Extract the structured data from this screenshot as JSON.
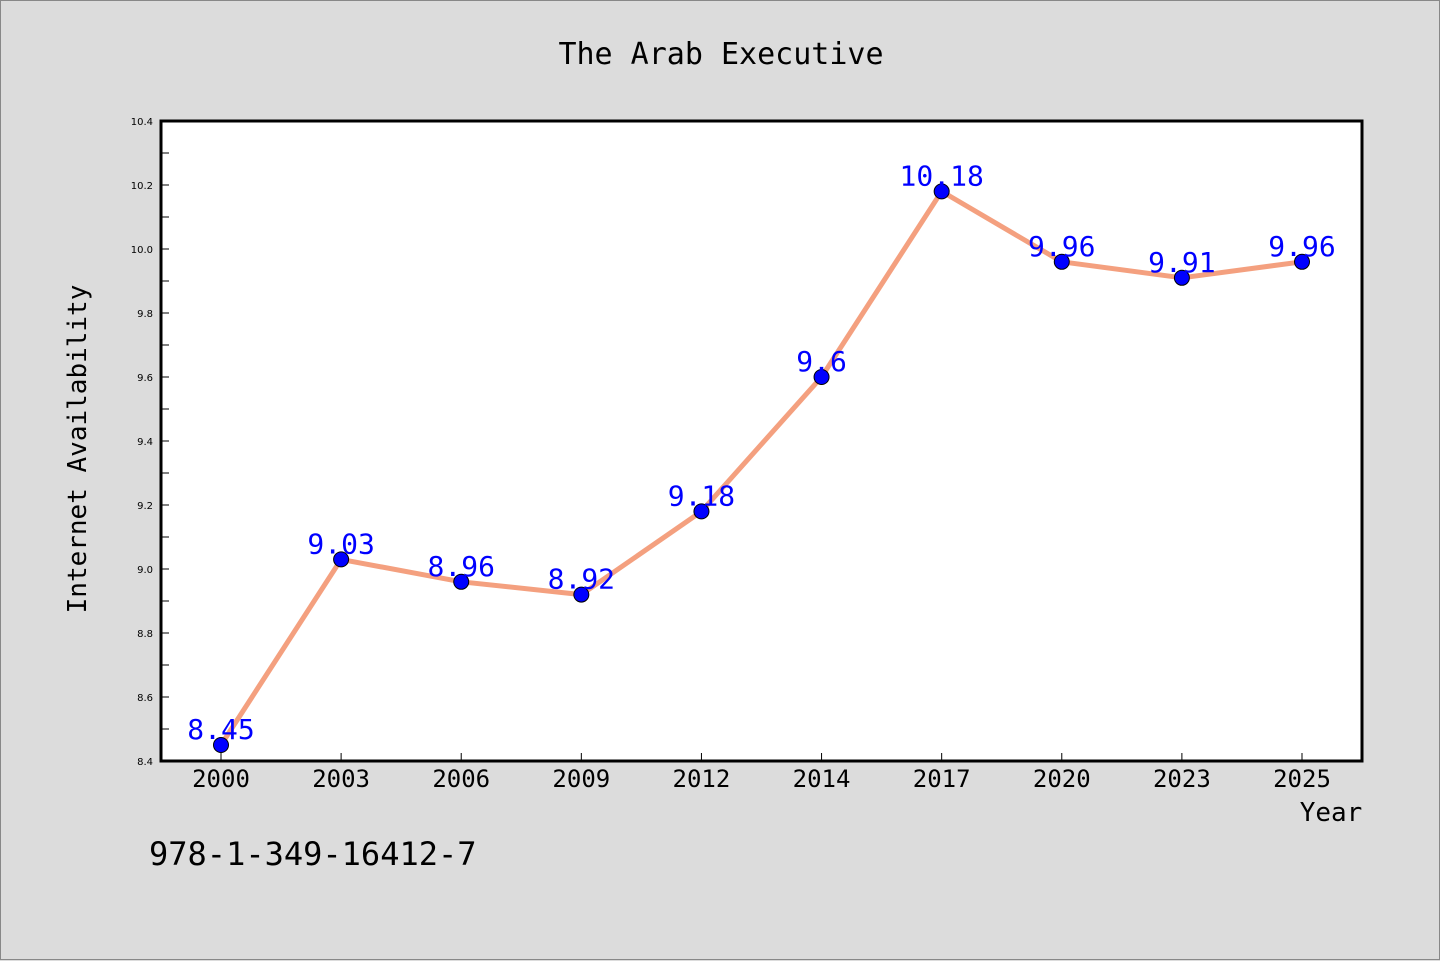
{
  "chart_data": {
    "type": "line",
    "title": "The Arab Executive",
    "xlabel": "Year",
    "ylabel": "Internet Availability",
    "categories": [
      "2000",
      "2003",
      "2006",
      "2009",
      "2012",
      "2014",
      "2017",
      "2020",
      "2023",
      "2025"
    ],
    "series": [
      {
        "values": [
          8.45,
          9.03,
          8.96,
          8.92,
          9.18,
          9.6,
          10.18,
          9.96,
          9.91,
          9.96
        ],
        "data_labels": [
          "8.45",
          "9.03",
          "8.96",
          "8.92",
          "9.18",
          "9.6",
          "10.18",
          "9.96",
          "9.91",
          "9.96"
        ]
      }
    ],
    "ylim": [
      8.4,
      10.4
    ],
    "y_ticks": [
      "8.4",
      "8.6",
      "8.8",
      "9.0",
      "9.2",
      "9.4",
      "9.6",
      "9.8",
      "10.0",
      "10.2",
      "10.4"
    ],
    "grid": false,
    "colors": {
      "line": "#f4a07f",
      "marker": "#0000ff",
      "data_label": "#0000ff",
      "plot_bg": "#ffffff",
      "page_bg": "#dcdcdc"
    }
  },
  "caption": "978-1-349-16412-7"
}
